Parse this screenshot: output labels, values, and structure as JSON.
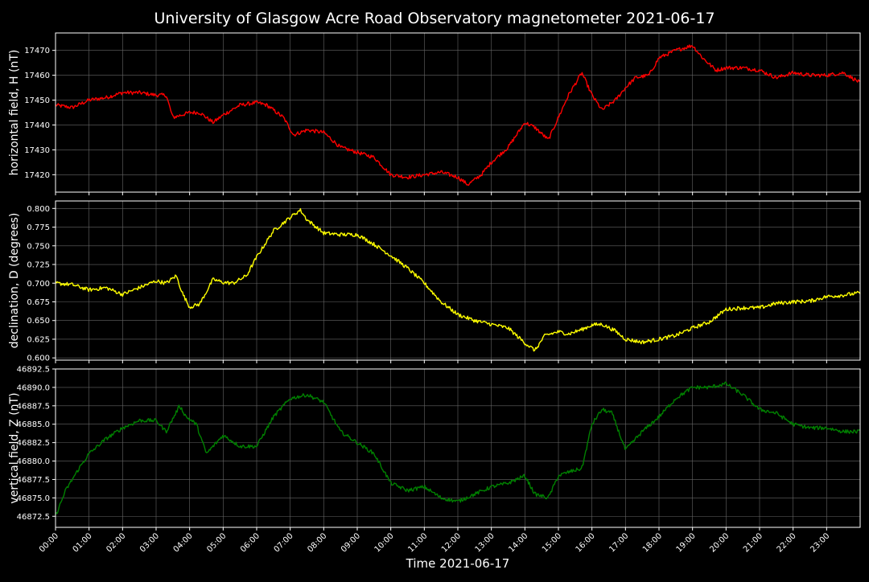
{
  "figure": {
    "title": "University of Glasgow Acre Road Observatory magnetometer 2021-06-17",
    "background": "#000000",
    "grid_color": "#666666"
  },
  "chart_data": [
    {
      "type": "line",
      "ylabel": "horizontal field, H (nT)",
      "color": "#ff0000",
      "ylim": [
        17413,
        17477
      ],
      "yticks": [
        17420,
        17430,
        17440,
        17450,
        17460,
        17470
      ],
      "ytick_labels": [
        "17420",
        "17430",
        "17440",
        "17450",
        "17460",
        "17470"
      ],
      "grid": true,
      "x": [
        0,
        0.5,
        1,
        1.5,
        2,
        2.5,
        3,
        3.3,
        3.5,
        4,
        4.3,
        4.7,
        5,
        5.5,
        6,
        6.3,
        6.8,
        7.1,
        7.5,
        8,
        8.5,
        9,
        9.5,
        10,
        10.5,
        11,
        11.5,
        12,
        12.3,
        12.7,
        13,
        13.5,
        14,
        14.3,
        14.7,
        15,
        15.3,
        15.7,
        16,
        16.3,
        16.7,
        17,
        17.3,
        17.7,
        18,
        18.5,
        19,
        19.3,
        19.7,
        20,
        20.5,
        21,
        21.5,
        22,
        22.5,
        23,
        23.5,
        24
      ],
      "y": [
        17448,
        17447,
        17450,
        17451,
        17453,
        17453,
        17452,
        17452,
        17443,
        17445,
        17445,
        17441,
        17444,
        17448,
        17449,
        17448,
        17443,
        17436,
        17438,
        17437,
        17431,
        17429,
        17427,
        17420,
        17419,
        17420,
        17421,
        17419,
        17416,
        17420,
        17425,
        17431,
        17441,
        17439,
        17434,
        17443,
        17452,
        17461,
        17452,
        17446,
        17450,
        17455,
        17459,
        17460,
        17467,
        17470,
        17472,
        17467,
        17462,
        17463,
        17463,
        17462,
        17459,
        17461,
        17460,
        17460,
        17461,
        17457
      ]
    },
    {
      "type": "line",
      "ylabel": "declination, D (degrees)",
      "color": "#ffff00",
      "ylim": [
        0.597,
        0.81
      ],
      "yticks": [
        0.6,
        0.625,
        0.65,
        0.675,
        0.7,
        0.725,
        0.75,
        0.775,
        0.8
      ],
      "ytick_labels": [
        "0.600",
        "0.625",
        "0.650",
        "0.675",
        "0.700",
        "0.725",
        "0.750",
        "0.775",
        "0.800"
      ],
      "grid": true,
      "x": [
        0,
        0.5,
        1,
        1.5,
        2,
        2.5,
        3,
        3.3,
        3.6,
        3.8,
        4,
        4.3,
        4.7,
        5,
        5.3,
        5.7,
        6,
        6.5,
        7,
        7.3,
        7.5,
        8,
        8.5,
        9,
        9.5,
        10,
        10.5,
        11,
        11.5,
        12,
        12.5,
        13,
        13.5,
        14,
        14.3,
        14.6,
        15,
        15.3,
        15.7,
        16,
        16.3,
        16.7,
        17,
        17.5,
        18,
        18.5,
        19,
        19.5,
        20,
        20.5,
        21,
        21.5,
        22,
        22.5,
        23,
        23.5,
        24
      ],
      "y": [
        0.7,
        0.698,
        0.691,
        0.694,
        0.685,
        0.694,
        0.703,
        0.7,
        0.71,
        0.685,
        0.668,
        0.672,
        0.705,
        0.701,
        0.7,
        0.71,
        0.735,
        0.77,
        0.788,
        0.798,
        0.785,
        0.767,
        0.765,
        0.765,
        0.752,
        0.737,
        0.72,
        0.7,
        0.675,
        0.658,
        0.65,
        0.645,
        0.64,
        0.62,
        0.61,
        0.63,
        0.635,
        0.632,
        0.638,
        0.644,
        0.645,
        0.636,
        0.625,
        0.621,
        0.625,
        0.63,
        0.64,
        0.648,
        0.665,
        0.667,
        0.667,
        0.673,
        0.675,
        0.676,
        0.682,
        0.684,
        0.687
      ]
    },
    {
      "type": "line",
      "ylabel": "vertical field, Z (nT)",
      "color": "#008000",
      "ylim": [
        46871,
        46892.5
      ],
      "yticks": [
        46872.5,
        46875,
        46877.5,
        46880,
        46882.5,
        46885,
        46887.5,
        46890,
        46892.5
      ],
      "ytick_labels": [
        "46872.5",
        "46875.0",
        "46877.5",
        "46880.0",
        "46882.5",
        "46885.0",
        "46887.5",
        "46890.0",
        "46892.5"
      ],
      "grid": true,
      "x": [
        0,
        0.3,
        0.7,
        1,
        1.5,
        2,
        2.5,
        3,
        3.3,
        3.7,
        3.9,
        4.2,
        4.5,
        5,
        5.5,
        6,
        6.5,
        7,
        7.5,
        8,
        8.5,
        9,
        9.5,
        10,
        10.5,
        11,
        11.5,
        12,
        12.5,
        13,
        13.5,
        14,
        14.3,
        14.7,
        15,
        15.3,
        15.7,
        16,
        16.3,
        16.6,
        17,
        17.5,
        18,
        18.5,
        19,
        19.5,
        20,
        20.5,
        21,
        21.5,
        22,
        22.5,
        23,
        23.5,
        24
      ],
      "y": [
        46872.5,
        46876,
        46879,
        46881,
        46883,
        46884.5,
        46885.5,
        46885.5,
        46884,
        46887.5,
        46886,
        46885,
        46881,
        46883.5,
        46882,
        46882,
        46886,
        46888.5,
        46889,
        46888,
        46884,
        46882.5,
        46881,
        46877,
        46876,
        46876.5,
        46875,
        46874.5,
        46875.5,
        46876.5,
        46877,
        46878,
        46875.5,
        46875,
        46878,
        46878.5,
        46879,
        46885,
        46887,
        46886.5,
        46881.5,
        46884,
        46886,
        46888.5,
        46890,
        46890,
        46890.5,
        46889,
        46887,
        46886.5,
        46885,
        46884.5,
        46884.5,
        46884,
        46884
      ]
    }
  ],
  "x_axis": {
    "xlim": [
      0,
      24
    ],
    "tick_values": [
      0,
      1,
      2,
      3,
      4,
      5,
      6,
      7,
      8,
      9,
      10,
      11,
      12,
      13,
      14,
      15,
      16,
      17,
      18,
      19,
      20,
      21,
      22,
      23
    ],
    "tick_labels": [
      "00:00",
      "01:00",
      "02:00",
      "03:00",
      "04:00",
      "05:00",
      "06:00",
      "07:00",
      "08:00",
      "09:00",
      "10:00",
      "11:00",
      "12:00",
      "13:00",
      "14:00",
      "15:00",
      "16:00",
      "17:00",
      "18:00",
      "19:00",
      "20:00",
      "21:00",
      "22:00",
      "23:00"
    ],
    "xlabel": "Time 2021-06-17"
  }
}
